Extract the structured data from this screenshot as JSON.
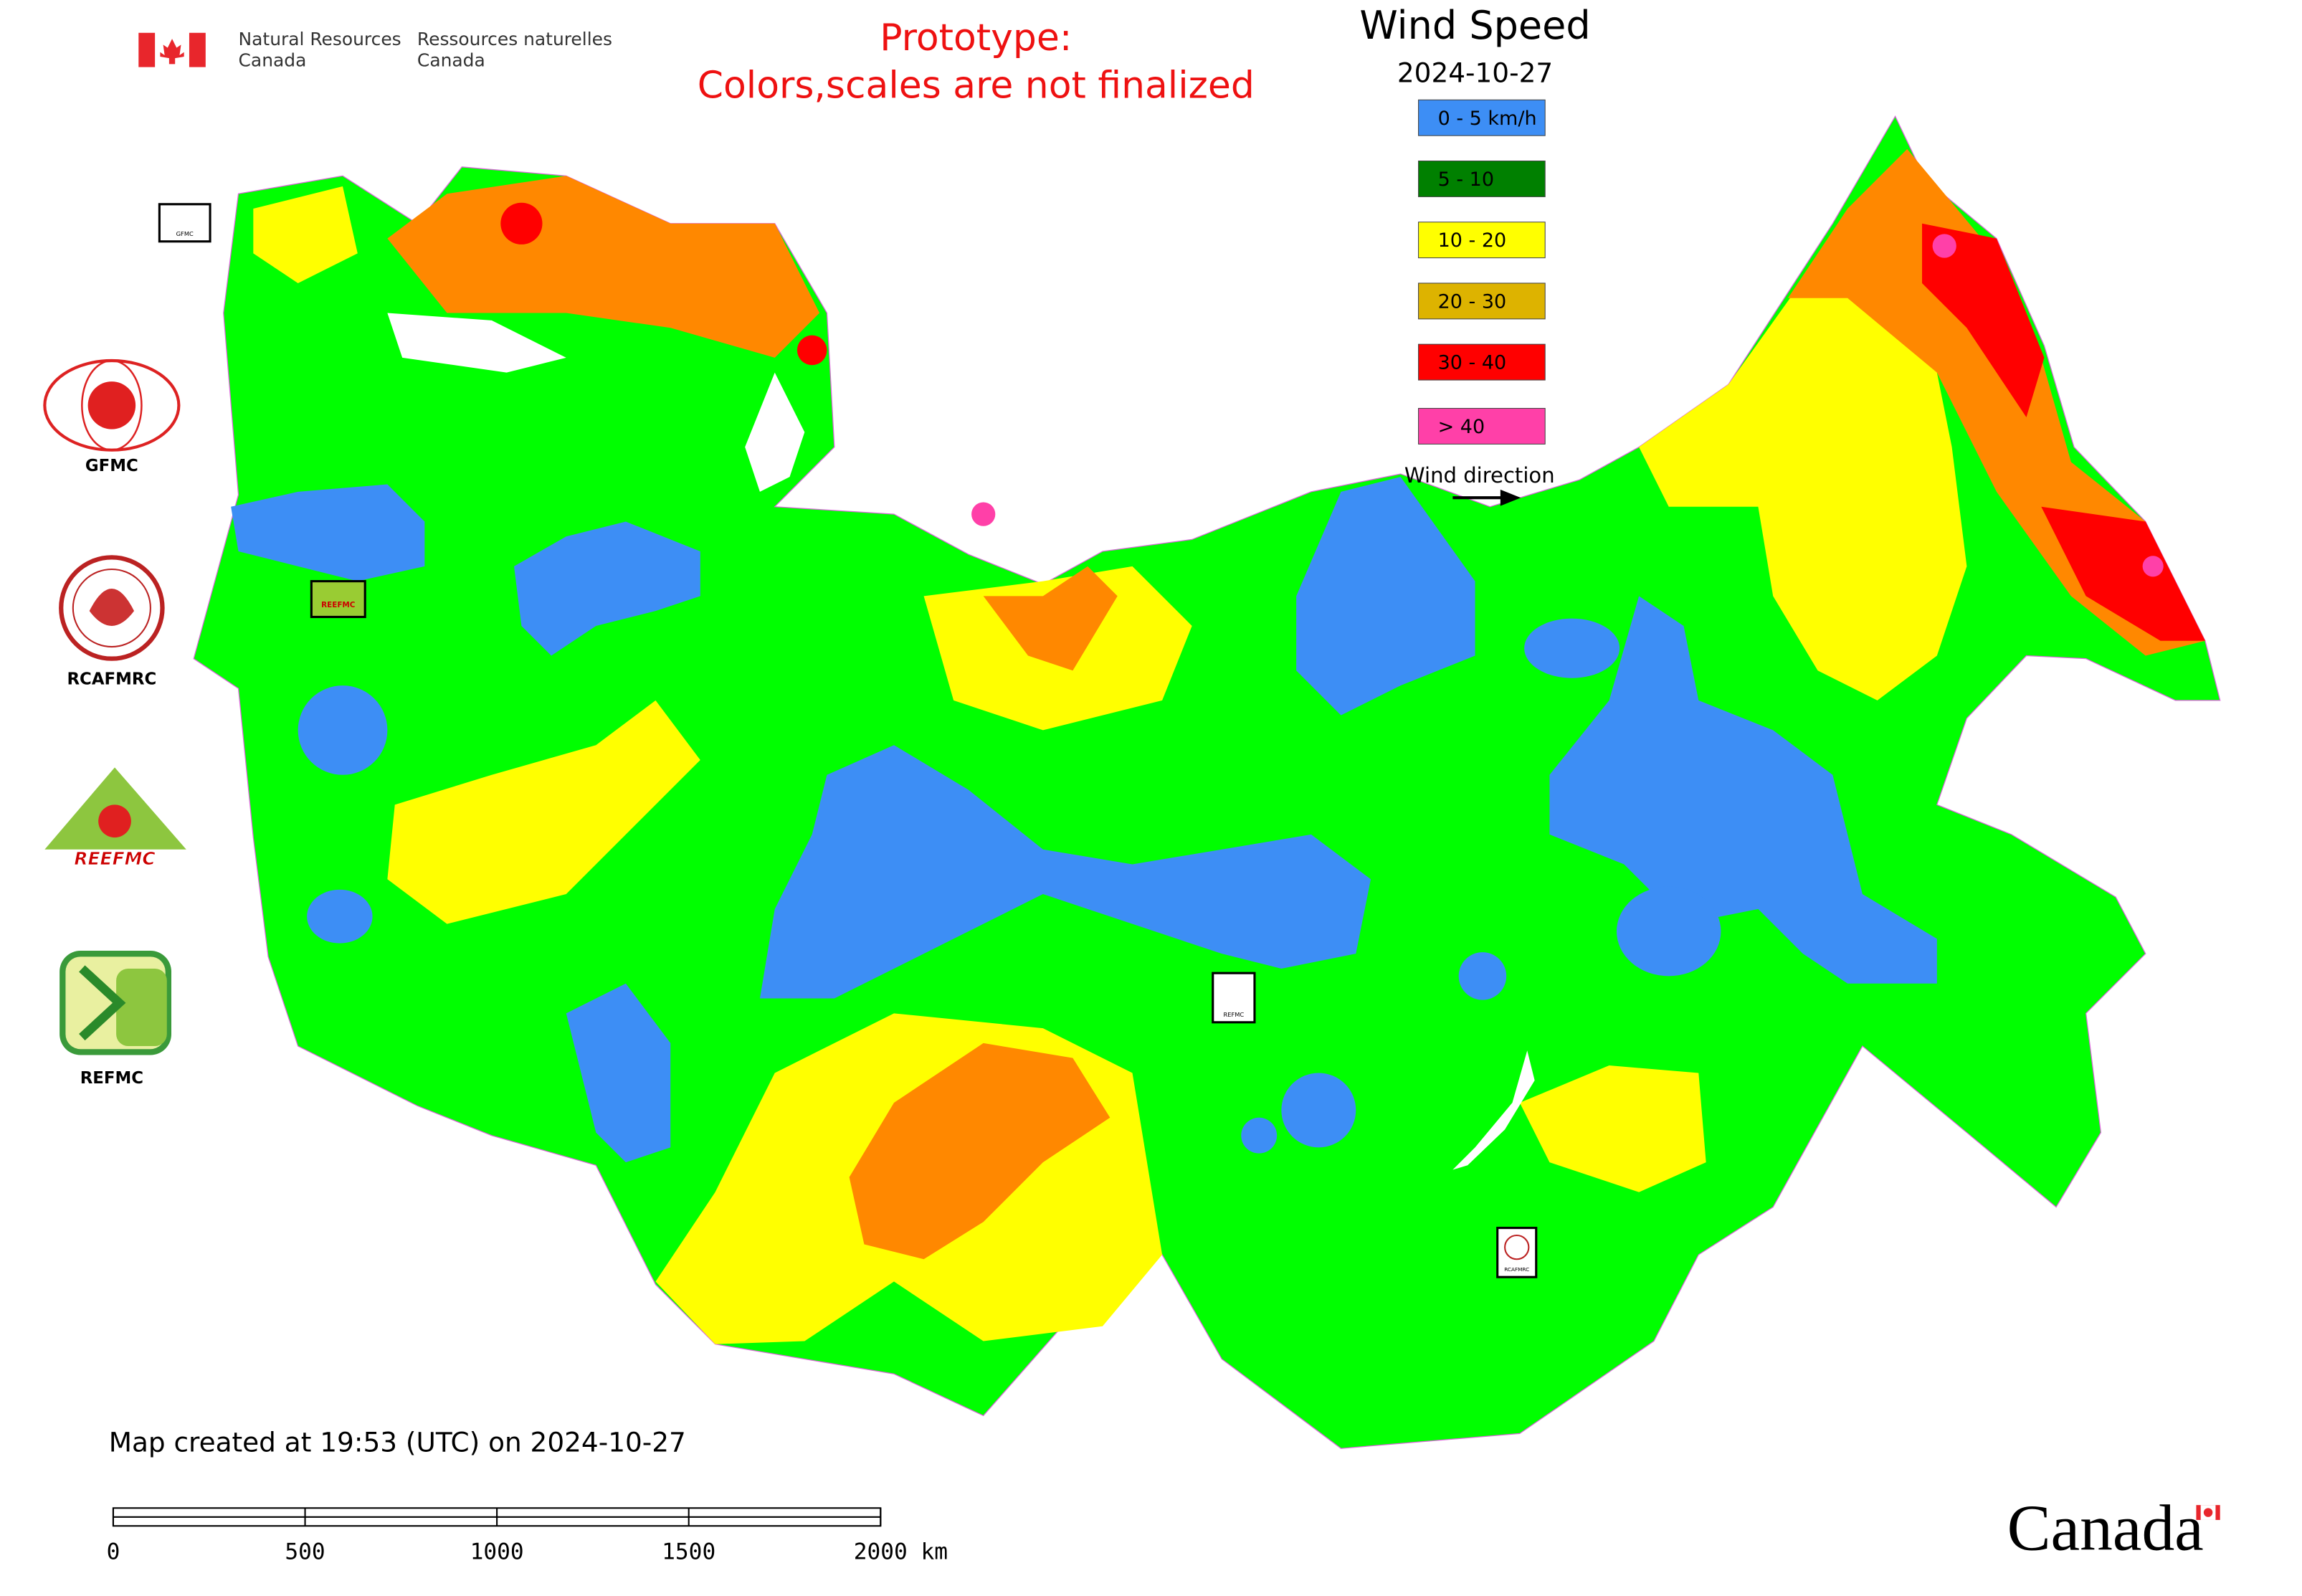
{
  "header": {
    "agency_en": [
      "Natural Resources",
      "Canada"
    ],
    "agency_fr": [
      "Ressources naturelles",
      "Canada"
    ],
    "notice": [
      "Prototype:",
      "Colors,scales are not finalized"
    ]
  },
  "legend": {
    "title": "Wind Speed",
    "date": "2024-10-27",
    "items": [
      {
        "label": "0 - 5 km/h",
        "color": "#3d8ef5"
      },
      {
        "label": "5 - 10",
        "color": "#008000"
      },
      {
        "label": "10 - 20",
        "color": "#ffff00"
      },
      {
        "label": "20 - 30",
        "color": "#ddb300"
      },
      {
        "label": "30 - 40",
        "color": "#ff0000"
      },
      {
        "label": "> 40",
        "color": "#ff40a8"
      }
    ],
    "wind_direction": "Wind direction"
  },
  "logos": [
    {
      "label": "GFMC"
    },
    {
      "label": "RCAFMRC"
    },
    {
      "label": "REEFMC"
    },
    {
      "label": "REFMC"
    }
  ],
  "map_markers": [
    {
      "label": "GFMC"
    },
    {
      "label": "REEFMC"
    },
    {
      "label": "REFMC"
    },
    {
      "label": "RCAFMRC"
    }
  ],
  "footer": {
    "created": "Map created at 19:53 (UTC) on 2024-10-27",
    "scale_bar": {
      "ticks": [
        0,
        500,
        1000,
        1500,
        2000
      ],
      "unit": "km"
    },
    "wordmark": "Canada"
  }
}
